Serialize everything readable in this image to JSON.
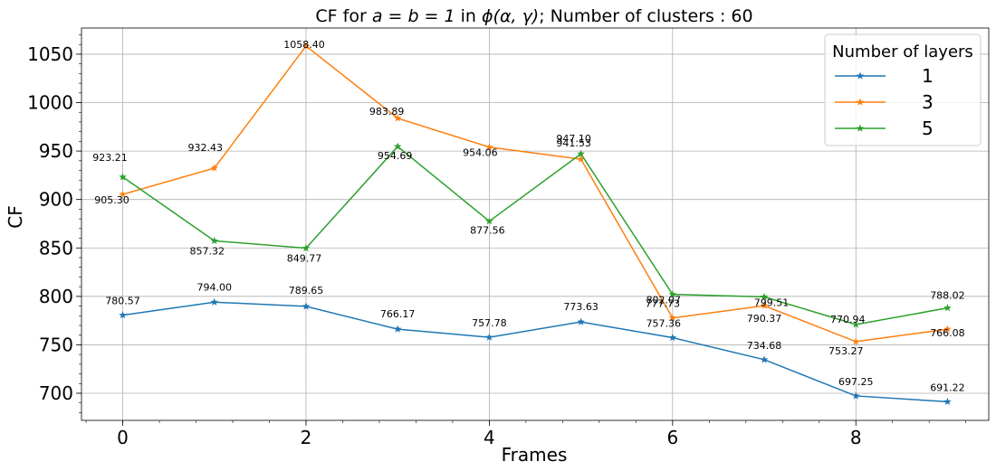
{
  "chart_data": {
    "type": "line",
    "title": "CF for a = b = 1 in ϕ(α, γ); Number of clusters : 60",
    "title_parts": {
      "pre": "CF for ",
      "math1": "a = b = 1",
      "mid": " in ",
      "math2": "ϕ(α, γ)",
      "post": "; Number of clusters : 60"
    },
    "xlabel": "Frames",
    "ylabel": "CF",
    "x": [
      0,
      1,
      2,
      3,
      4,
      5,
      6,
      7,
      8,
      9
    ],
    "xlim": [
      -0.45,
      9.45
    ],
    "ylim": [
      672,
      1077
    ],
    "xticks": [
      0,
      2,
      4,
      6,
      8
    ],
    "xtick_labels": [
      "0",
      "2",
      "4",
      "6",
      "8"
    ],
    "yticks": [
      700,
      750,
      800,
      850,
      900,
      950,
      1000,
      1050
    ],
    "ytick_labels": [
      "700",
      "750",
      "800",
      "850",
      "900",
      "950",
      "1000",
      "1050"
    ],
    "grid": true,
    "legend": {
      "title": "Number of layers",
      "position": "top-right"
    },
    "series": [
      {
        "name": "1",
        "color": "#1f77b4",
        "values": [
          780.57,
          794.0,
          789.65,
          766.17,
          757.78,
          773.63,
          757.36,
          734.68,
          697.25,
          691.22
        ],
        "labels": [
          "780.57",
          "794.00",
          "789.65",
          "766.17",
          "757.78",
          "773.63",
          "757.36",
          "734.68",
          "697.25",
          "691.22"
        ]
      },
      {
        "name": "3",
        "color": "#ff7f0e",
        "values": [
          905.3,
          932.43,
          1058.4,
          983.89,
          954.06,
          941.53,
          777.73,
          790.37,
          753.27,
          766.08
        ],
        "labels": [
          "905.30",
          "932.43",
          "1058.40",
          "983.89",
          "954.06",
          "941.53",
          "777.73",
          "790.37",
          "753.27",
          "766.08"
        ]
      },
      {
        "name": "5",
        "color": "#2ca02c",
        "values": [
          923.21,
          857.32,
          849.77,
          954.69,
          877.56,
          947.1,
          802.07,
          799.51,
          770.94,
          788.02
        ],
        "labels": [
          "923.21",
          "857.32",
          "849.77",
          "954.69",
          "877.56",
          "947.10",
          "802.07",
          "799.51",
          "770.94",
          "788.02"
        ]
      }
    ]
  }
}
